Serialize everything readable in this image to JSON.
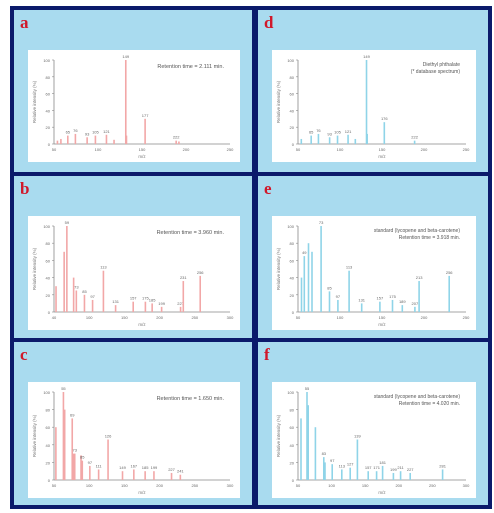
{
  "figure": {
    "panels": [
      {
        "id": "a",
        "label": "a",
        "color": "#f2a7a7",
        "annotation": "Retention time = 2.111 min.",
        "ylabel": "Relative intensity (%)",
        "xlabel": "m/z",
        "y_ticks": [
          "0",
          "20",
          "40",
          "60",
          "80",
          "100"
        ],
        "x_ticks": [
          "50",
          "100",
          "150",
          "200",
          "250"
        ],
        "xlim": [
          45,
          300
        ],
        "ylim": [
          0,
          100
        ],
        "peaks": [
          {
            "x": 50,
            "y": 4
          },
          {
            "x": 55,
            "y": 6
          },
          {
            "x": 65,
            "y": 10,
            "label": "65"
          },
          {
            "x": 76,
            "y": 12,
            "label": "76"
          },
          {
            "x": 93,
            "y": 8,
            "label": "93"
          },
          {
            "x": 105,
            "y": 10,
            "label": "105"
          },
          {
            "x": 121,
            "y": 11,
            "label": "121"
          },
          {
            "x": 132,
            "y": 5
          },
          {
            "x": 149,
            "y": 100,
            "label": "149"
          },
          {
            "x": 150,
            "y": 10
          },
          {
            "x": 177,
            "y": 30,
            "label": "177"
          },
          {
            "x": 222,
            "y": 4,
            "label": "222"
          },
          {
            "x": 226,
            "y": 3
          }
        ]
      },
      {
        "id": "d",
        "label": "d",
        "color": "#8fd4e8",
        "annotation": "Diethyl phthalate",
        "annotation2": "(* database spectrum)",
        "ylabel": "Relative intensity (%)",
        "xlabel": "m/z",
        "y_ticks": [
          "0",
          "20",
          "40",
          "60",
          "80",
          "100"
        ],
        "x_ticks": [
          "50",
          "100",
          "150",
          "200",
          "250"
        ],
        "xlim": [
          45,
          300
        ],
        "ylim": [
          0,
          100
        ],
        "peaks": [
          {
            "x": 50,
            "y": 6
          },
          {
            "x": 65,
            "y": 10,
            "label": "65"
          },
          {
            "x": 76,
            "y": 12,
            "label": "76"
          },
          {
            "x": 93,
            "y": 8,
            "label": "93"
          },
          {
            "x": 105,
            "y": 10,
            "label": "105"
          },
          {
            "x": 121,
            "y": 11,
            "label": "121"
          },
          {
            "x": 132,
            "y": 6
          },
          {
            "x": 149,
            "y": 100,
            "label": "149"
          },
          {
            "x": 150,
            "y": 12
          },
          {
            "x": 176,
            "y": 26,
            "label": "176"
          },
          {
            "x": 222,
            "y": 4,
            "label": "222"
          }
        ]
      },
      {
        "id": "b",
        "label": "b",
        "color": "#f2a7a7",
        "annotation": "Retention time = 3.960 min.",
        "ylabel": "Relative intensity (%)",
        "xlabel": "m/z",
        "y_ticks": [
          "0",
          "20",
          "40",
          "60",
          "80",
          "100"
        ],
        "x_ticks": [
          "40",
          "100",
          "150",
          "200",
          "250",
          "300"
        ],
        "xlim": [
          40,
          300
        ],
        "ylim": [
          0,
          100
        ],
        "peaks": [
          {
            "x": 43,
            "y": 30
          },
          {
            "x": 55,
            "y": 70
          },
          {
            "x": 59,
            "y": 100,
            "label": "59"
          },
          {
            "x": 69,
            "y": 40
          },
          {
            "x": 73,
            "y": 25,
            "label": "73"
          },
          {
            "x": 85,
            "y": 20,
            "label": "85"
          },
          {
            "x": 97,
            "y": 14,
            "label": "97"
          },
          {
            "x": 113,
            "y": 48,
            "label": "113"
          },
          {
            "x": 131,
            "y": 8,
            "label": "131"
          },
          {
            "x": 157,
            "y": 12,
            "label": "157"
          },
          {
            "x": 175,
            "y": 12,
            "label": "175"
          },
          {
            "x": 185,
            "y": 10,
            "label": "185"
          },
          {
            "x": 199,
            "y": 6,
            "label": "199"
          },
          {
            "x": 227,
            "y": 6,
            "label": "227"
          },
          {
            "x": 231,
            "y": 36,
            "label": "231"
          },
          {
            "x": 256,
            "y": 42,
            "label": "256"
          }
        ]
      },
      {
        "id": "e",
        "label": "e",
        "color": "#8fd4e8",
        "annotation": "standard (lycopene and beta-carotene)",
        "annotation2": "Retention time = 3.918 min.",
        "ylabel": "Relative intensity (%)",
        "xlabel": "m/z",
        "y_ticks": [
          "0",
          "20",
          "40",
          "60",
          "80",
          "100"
        ],
        "x_ticks": [
          "50",
          "100",
          "150",
          "200",
          "250"
        ],
        "xlim": [
          40,
          280
        ],
        "ylim": [
          0,
          100
        ],
        "peaks": [
          {
            "x": 45,
            "y": 40
          },
          {
            "x": 49,
            "y": 65,
            "label": "49"
          },
          {
            "x": 55,
            "y": 80
          },
          {
            "x": 60,
            "y": 70
          },
          {
            "x": 73,
            "y": 100,
            "label": "73"
          },
          {
            "x": 85,
            "y": 24,
            "label": "85"
          },
          {
            "x": 97,
            "y": 14,
            "label": "97"
          },
          {
            "x": 113,
            "y": 48,
            "label": "113"
          },
          {
            "x": 131,
            "y": 10,
            "label": "131"
          },
          {
            "x": 157,
            "y": 12,
            "label": "157"
          },
          {
            "x": 175,
            "y": 14,
            "label": "175"
          },
          {
            "x": 189,
            "y": 8,
            "label": "189"
          },
          {
            "x": 207,
            "y": 6,
            "label": "207"
          },
          {
            "x": 213,
            "y": 36,
            "label": "213"
          },
          {
            "x": 256,
            "y": 42,
            "label": "256"
          }
        ]
      },
      {
        "id": "c",
        "label": "c",
        "color": "#f2a7a7",
        "annotation": "Retention time = 1.650 min.",
        "ylabel": "Relative intensity (%)",
        "xlabel": "m/z",
        "y_ticks": [
          "0",
          "20",
          "40",
          "60",
          "80",
          "100"
        ],
        "x_ticks": [
          "50",
          "100",
          "150",
          "200",
          "250",
          "300"
        ],
        "xlim": [
          40,
          320
        ],
        "ylim": [
          0,
          100
        ],
        "peaks": [
          {
            "x": 43,
            "y": 60
          },
          {
            "x": 55,
            "y": 100,
            "label": "55"
          },
          {
            "x": 57,
            "y": 80
          },
          {
            "x": 69,
            "y": 70,
            "label": "69"
          },
          {
            "x": 71,
            "y": 30
          },
          {
            "x": 73,
            "y": 30,
            "label": "73"
          },
          {
            "x": 83,
            "y": 28
          },
          {
            "x": 85,
            "y": 22,
            "label": "85"
          },
          {
            "x": 97,
            "y": 16,
            "label": "97"
          },
          {
            "x": 111,
            "y": 12,
            "label": "111"
          },
          {
            "x": 126,
            "y": 46,
            "label": "126"
          },
          {
            "x": 149,
            "y": 10,
            "label": "149"
          },
          {
            "x": 167,
            "y": 12,
            "label": "167"
          },
          {
            "x": 185,
            "y": 10,
            "label": "185"
          },
          {
            "x": 199,
            "y": 10,
            "label": "199"
          },
          {
            "x": 227,
            "y": 8,
            "label": "227"
          },
          {
            "x": 241,
            "y": 6,
            "label": "241"
          }
        ]
      },
      {
        "id": "f",
        "label": "f",
        "color": "#8fd4e8",
        "annotation": "standard (lycopene and beta-carotene)",
        "annotation2": "Retention time = 4.020 min.",
        "ylabel": "Relative intensity (%)",
        "xlabel": "m/z",
        "y_ticks": [
          "0",
          "20",
          "40",
          "60",
          "80",
          "100"
        ],
        "x_ticks": [
          "50",
          "100",
          "150",
          "200",
          "250",
          "300"
        ],
        "xlim": [
          40,
          320
        ],
        "ylim": [
          0,
          100
        ],
        "peaks": [
          {
            "x": 45,
            "y": 70
          },
          {
            "x": 55,
            "y": 100,
            "label": "55"
          },
          {
            "x": 57,
            "y": 85
          },
          {
            "x": 69,
            "y": 60
          },
          {
            "x": 83,
            "y": 26,
            "label": "83"
          },
          {
            "x": 85,
            "y": 20
          },
          {
            "x": 97,
            "y": 18,
            "label": "97"
          },
          {
            "x": 113,
            "y": 12,
            "label": "113"
          },
          {
            "x": 127,
            "y": 14,
            "label": "127"
          },
          {
            "x": 139,
            "y": 46,
            "label": "139"
          },
          {
            "x": 157,
            "y": 10,
            "label": "157"
          },
          {
            "x": 171,
            "y": 10,
            "label": "171"
          },
          {
            "x": 181,
            "y": 16,
            "label": "181"
          },
          {
            "x": 199,
            "y": 8,
            "label": "199"
          },
          {
            "x": 211,
            "y": 10,
            "label": "211"
          },
          {
            "x": 227,
            "y": 8,
            "label": "227"
          },
          {
            "x": 281,
            "y": 12,
            "label": "281"
          }
        ]
      }
    ]
  }
}
